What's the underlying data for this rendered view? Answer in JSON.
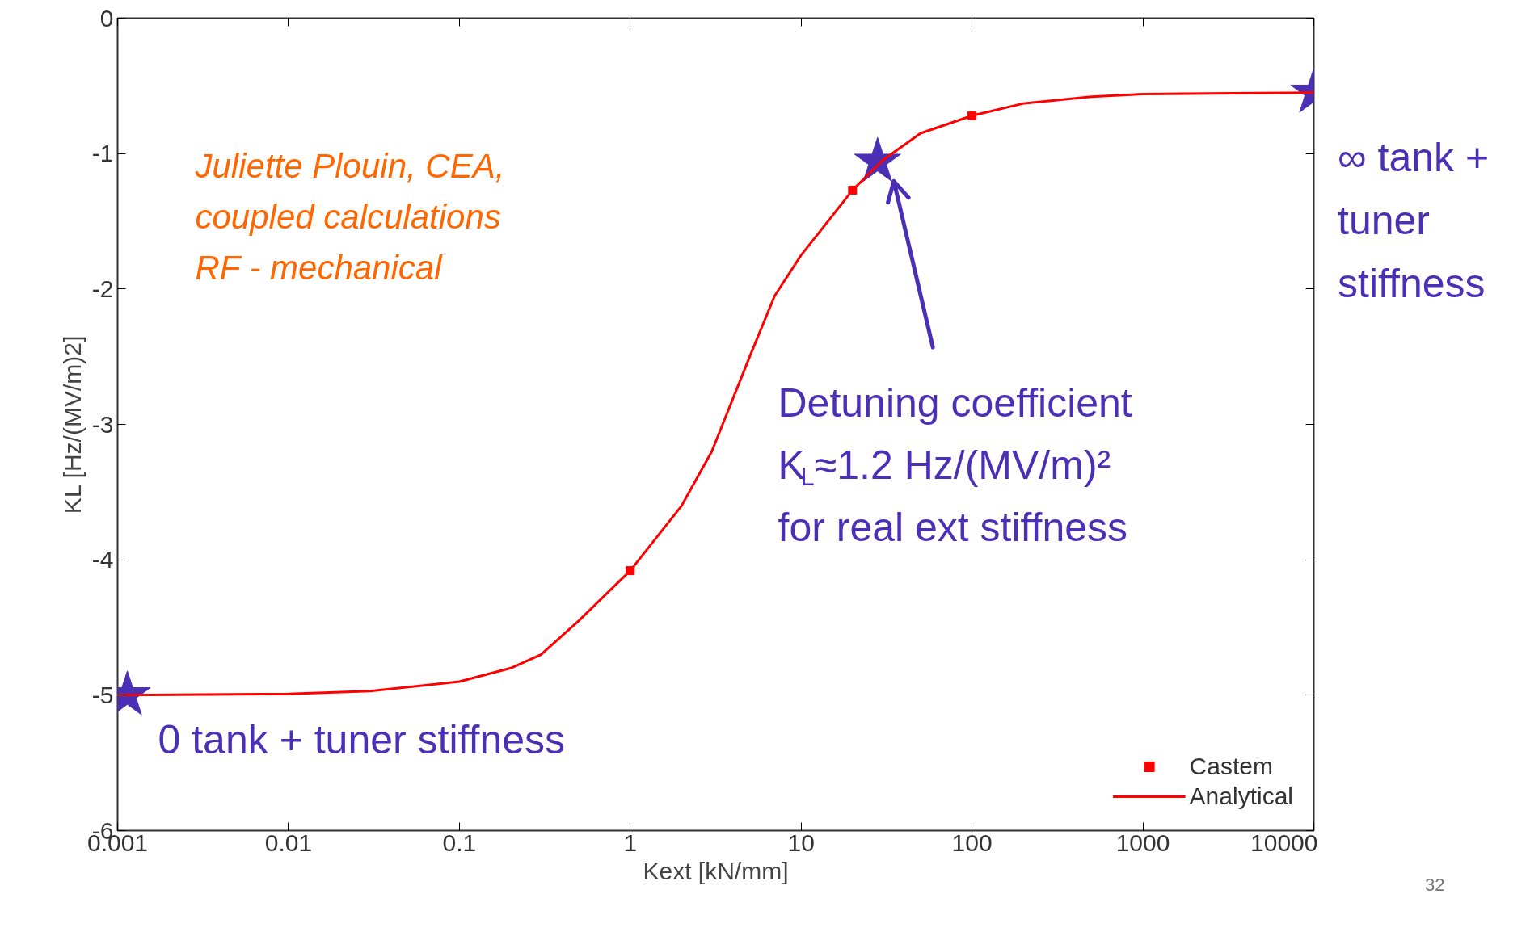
{
  "chart_data": {
    "type": "line",
    "xlabel": "Kext [kN/mm]",
    "ylabel": "KL [Hz/(MV/m)2]",
    "log": "x",
    "xlim": [
      0.001,
      10000
    ],
    "ylim": [
      -6,
      0
    ],
    "xticks": [
      0.001,
      0.01,
      0.1,
      1,
      10,
      100,
      1000,
      10000
    ],
    "yticks": [
      -6,
      -5,
      -4,
      -3,
      -2,
      -1,
      0
    ],
    "grid": false,
    "legend": "bottom right",
    "series": [
      {
        "name": "Castem",
        "type": "scatter",
        "marker": "square",
        "color": "#ff0000",
        "x": [
          1,
          20,
          100
        ],
        "values": [
          -4.08,
          -1.27,
          -0.72
        ]
      },
      {
        "name": "Analytical",
        "marker": "none",
        "line_style": "solid",
        "color": "#ff0000",
        "x": [
          0.001,
          0.01,
          0.03,
          0.1,
          0.2,
          0.3,
          0.5,
          1,
          2,
          3,
          5,
          7,
          10,
          20,
          30,
          50,
          100,
          200,
          500,
          1000,
          10000
        ],
        "values": [
          -5.0,
          -4.99,
          -4.97,
          -4.9,
          -4.8,
          -4.7,
          -4.45,
          -4.08,
          -3.6,
          -3.2,
          -2.5,
          -2.05,
          -1.75,
          -1.27,
          -1.05,
          -0.85,
          -0.72,
          -0.63,
          -0.58,
          -0.56,
          -0.55
        ]
      },
      {
        "type": "scatter",
        "marker": "star",
        "color": "#4b2fb5",
        "x": [
          0.00114,
          28,
          10000
        ],
        "values": [
          -5.0,
          -1.06,
          -0.55
        ]
      }
    ],
    "annotations": [
      {
        "text": "0 tank + tuner stiffness",
        "x": 0.00114,
        "y": -5.0
      },
      "Detuning coefficient\nK$_{L}$≈1.2 Hz/(MV/m)²\nfor real ext stiffness",
      "∞ tank +\ntuner\nstiffness",
      "Juliette Plouin, CEA,\ncoupled calculations\nRF - mechanical",
      "32"
    ]
  }
}
